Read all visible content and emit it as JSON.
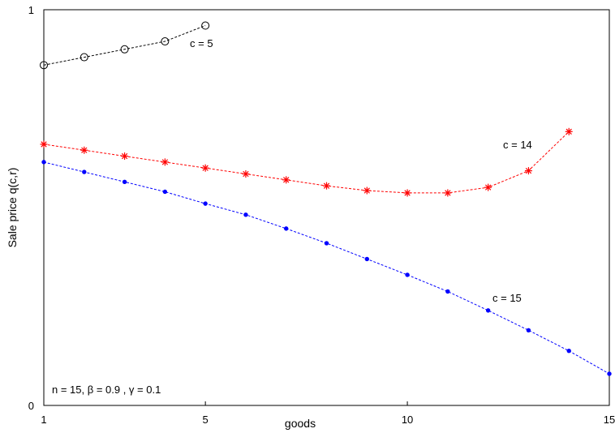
{
  "chart_data": {
    "type": "line",
    "xlabel": "goods",
    "ylabel": "Sale price q(c,r)",
    "xlim": [
      1,
      15
    ],
    "ylim": [
      0,
      1
    ],
    "x_ticks": [
      "1",
      "5",
      "10",
      "15"
    ],
    "y_ticks": [
      "0",
      "1"
    ],
    "grid": false,
    "series": [
      {
        "name": "c = 5",
        "color": "#000000",
        "marker": "circle",
        "x": [
          1,
          2,
          3,
          4,
          5
        ],
        "values": [
          0.86,
          0.88,
          0.9,
          0.92,
          0.96
        ]
      },
      {
        "name": "c = 14",
        "color": "#ff0000",
        "marker": "star",
        "x": [
          1,
          2,
          3,
          4,
          5,
          6,
          7,
          8,
          9,
          10,
          11,
          12,
          13,
          14
        ],
        "values": [
          0.66,
          0.645,
          0.63,
          0.615,
          0.6,
          0.585,
          0.57,
          0.555,
          0.543,
          0.537,
          0.537,
          0.551,
          0.593,
          0.692
        ]
      },
      {
        "name": "c = 15",
        "color": "#0000ff",
        "marker": "dot",
        "x": [
          1,
          2,
          3,
          4,
          5,
          6,
          7,
          8,
          9,
          10,
          11,
          12,
          13,
          14,
          15
        ],
        "values": [
          0.615,
          0.59,
          0.565,
          0.54,
          0.51,
          0.482,
          0.447,
          0.41,
          0.37,
          0.33,
          0.288,
          0.24,
          0.19,
          0.138,
          0.08
        ]
      }
    ],
    "annotations": {
      "params": "n = 15,  β = 0.9 , γ = 0.1"
    }
  }
}
